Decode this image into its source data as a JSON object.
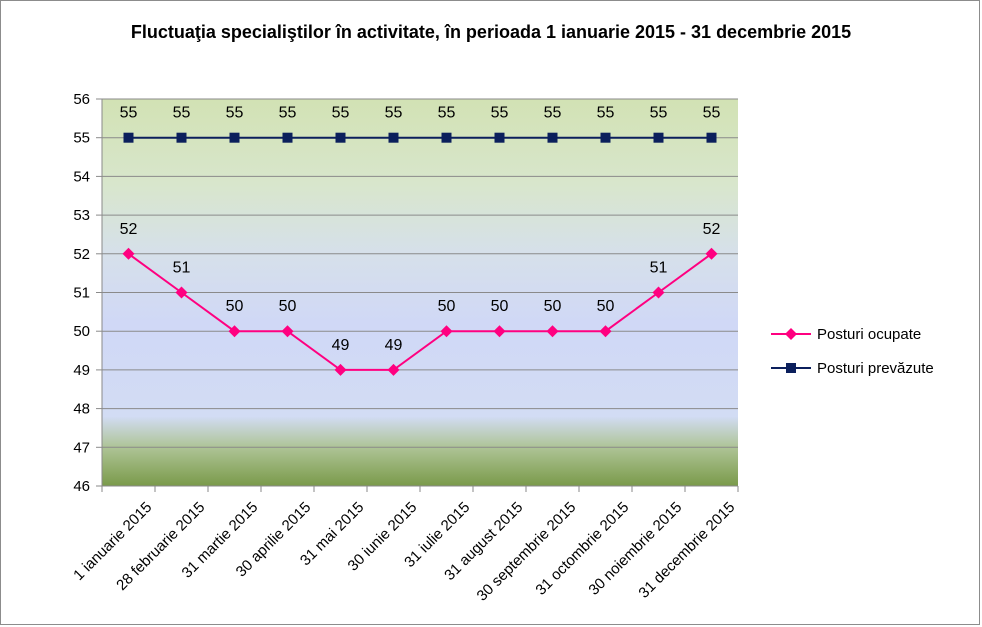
{
  "chart_data": {
    "type": "line",
    "title": "Fluctuaţia specialiştilor în activitate, în perioada 1 ianuarie 2015 - 31 decembrie 2015",
    "categories": [
      "1 ianuarie 2015",
      "28 februarie 2015",
      "31 martie 2015",
      "30 aprilie 2015",
      "31 mai 2015",
      "30 iunie 2015",
      "31 iulie 2015",
      "31 august 2015",
      "30 septembrie 2015",
      "31 octombrie 2015",
      "30 noiembrie 2015",
      "31 decembrie 2015"
    ],
    "series": [
      {
        "name": "Posturi ocupate",
        "values": [
          52,
          51,
          50,
          50,
          49,
          49,
          50,
          50,
          50,
          50,
          51,
          52
        ],
        "color": "#ff0080",
        "marker": "diamond"
      },
      {
        "name": "Posturi prevăzute",
        "values": [
          55,
          55,
          55,
          55,
          55,
          55,
          55,
          55,
          55,
          55,
          55,
          55
        ],
        "color": "#0b1f5c",
        "marker": "square"
      }
    ],
    "ylim": [
      46,
      56
    ],
    "yticks": [
      46,
      47,
      48,
      49,
      50,
      51,
      52,
      53,
      54,
      55,
      56
    ],
    "grid": true,
    "legend_position": "right",
    "data_labels": true,
    "plot_background": "gradient green-blue-green"
  }
}
